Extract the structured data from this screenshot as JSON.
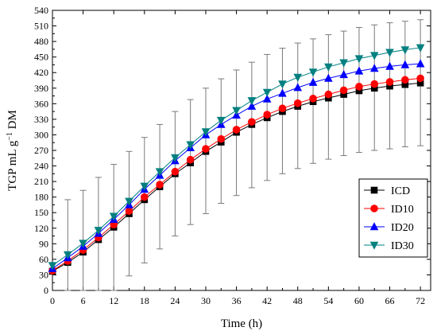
{
  "chart_data": {
    "type": "line",
    "title": "",
    "xlabel": "Time (h)",
    "ylabel_parts": [
      "TGP mL g",
      "−1",
      " DM"
    ],
    "xlim": [
      0,
      74
    ],
    "ylim": [
      0,
      540
    ],
    "x_ticks": [
      0,
      6,
      12,
      18,
      24,
      30,
      36,
      42,
      48,
      54,
      60,
      66,
      72
    ],
    "y_ticks": [
      0,
      30,
      60,
      90,
      120,
      150,
      180,
      210,
      240,
      270,
      300,
      330,
      360,
      390,
      420,
      450,
      480,
      510,
      540
    ],
    "x_minor_ticks": [
      3,
      9,
      15,
      21,
      27,
      33,
      39,
      45,
      51,
      57,
      63,
      69
    ],
    "y_minor_ticks": [
      15,
      45,
      75,
      105,
      135,
      165,
      195,
      225,
      255,
      285,
      315,
      345,
      375,
      405,
      435,
      465,
      495,
      525
    ],
    "grid": false,
    "legend_position": "right-middle",
    "x": [
      0,
      3,
      6,
      9,
      12,
      15,
      18,
      21,
      24,
      27,
      30,
      33,
      36,
      39,
      42,
      45,
      48,
      51,
      54,
      57,
      60,
      63,
      66,
      69,
      72
    ],
    "error_bars": {
      "upper": [
        40,
        175,
        193,
        218,
        243,
        268,
        295,
        320,
        345,
        368,
        390,
        408,
        425,
        440,
        455,
        467,
        477,
        485,
        493,
        500,
        507,
        512,
        516,
        519,
        522
      ],
      "lower": [
        35,
        0,
        0,
        0,
        0,
        28,
        53,
        80,
        105,
        127,
        148,
        168,
        183,
        198,
        212,
        225,
        235,
        245,
        253,
        260,
        266,
        270,
        273,
        277,
        279
      ]
    },
    "series": [
      {
        "name": "ICD",
        "color": "#000000",
        "marker": "square",
        "values": [
          37,
          54,
          74,
          98,
          122,
          148,
          175,
          200,
          225,
          246,
          268,
          286,
          305,
          320,
          333,
          345,
          355,
          364,
          371,
          378,
          385,
          390,
          394,
          397,
          400
        ]
      },
      {
        "name": "ID10",
        "color": "#ff0000",
        "marker": "circle",
        "values": [
          38,
          57,
          78,
          102,
          127,
          153,
          180,
          204,
          229,
          252,
          273,
          292,
          310,
          325,
          339,
          351,
          361,
          370,
          378,
          386,
          393,
          398,
          402,
          406,
          409
        ]
      },
      {
        "name": "ID20",
        "color": "#0000ff",
        "marker": "triangle-up",
        "values": [
          42,
          63,
          85,
          110,
          137,
          165,
          195,
          222,
          250,
          275,
          300,
          320,
          338,
          355,
          369,
          380,
          391,
          401,
          409,
          416,
          423,
          428,
          432,
          435,
          437
        ]
      },
      {
        "name": "ID30",
        "color": "#008080",
        "marker": "triangle-down",
        "values": [
          48,
          69,
          91,
          116,
          143,
          172,
          201,
          229,
          256,
          281,
          306,
          328,
          347,
          366,
          382,
          398,
          411,
          421,
          431,
          439,
          447,
          453,
          459,
          464,
          468
        ]
      }
    ]
  }
}
